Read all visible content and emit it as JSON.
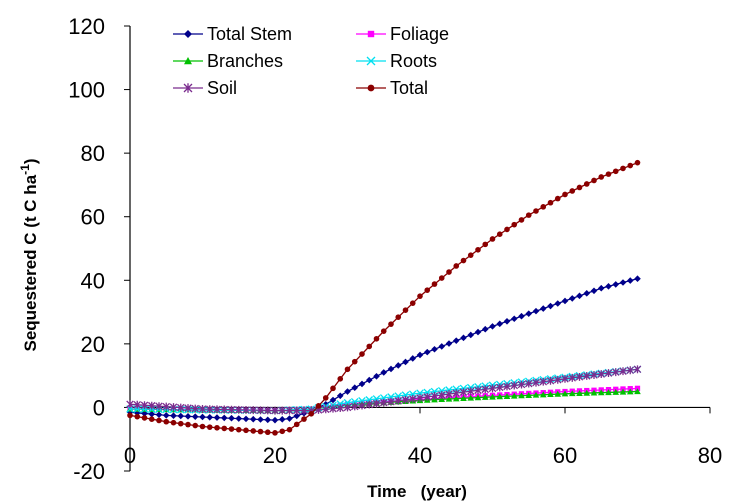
{
  "chart_data": {
    "type": "line",
    "xlabel": "Time   (year)",
    "ylabel_main": "Sequestered C (t C ha",
    "ylabel_sup": "-1",
    "ylabel_end": ")",
    "xlim": [
      0,
      80
    ],
    "ylim": [
      -20,
      120
    ],
    "x_ticks": [
      0,
      20,
      40,
      60,
      80
    ],
    "y_ticks": [
      -20,
      0,
      20,
      40,
      60,
      80,
      100,
      120
    ],
    "grid": false,
    "legend_position": "top-left",
    "series": [
      {
        "name": "Total Stem",
        "color": "#00008B",
        "marker": "diamond",
        "x": [
          0,
          5,
          10,
          15,
          20,
          22,
          25,
          27,
          30,
          35,
          40,
          45,
          50,
          55,
          60,
          65,
          70
        ],
        "y": [
          -1.5,
          -2.5,
          -3.0,
          -3.5,
          -4.0,
          -3.5,
          -1.0,
          1.0,
          5.0,
          11.0,
          16.5,
          21.0,
          25.5,
          29.5,
          33.5,
          37.5,
          40.5
        ]
      },
      {
        "name": "Foliage",
        "color": "#FF00FF",
        "marker": "square",
        "x": [
          0,
          10,
          20,
          25,
          30,
          40,
          50,
          60,
          70
        ],
        "y": [
          -0.5,
          -0.8,
          -1.0,
          -0.5,
          1.0,
          2.5,
          3.8,
          5.0,
          6.0
        ]
      },
      {
        "name": "Branches",
        "color": "#00C000",
        "marker": "triangle",
        "x": [
          0,
          10,
          20,
          25,
          30,
          40,
          50,
          60,
          70
        ],
        "y": [
          -0.5,
          -0.8,
          -1.0,
          -0.5,
          0.8,
          2.2,
          3.3,
          4.3,
          5.0
        ]
      },
      {
        "name": "Roots",
        "color": "#00E0F0",
        "marker": "x",
        "x": [
          0,
          10,
          20,
          25,
          30,
          40,
          50,
          60,
          70
        ],
        "y": [
          -0.5,
          -0.8,
          -1.0,
          -0.5,
          1.5,
          4.5,
          7.0,
          9.5,
          12.0
        ]
      },
      {
        "name": "Soil",
        "color": "#7B2C8E",
        "marker": "star",
        "x": [
          0,
          10,
          20,
          25,
          30,
          40,
          50,
          60,
          70
        ],
        "y": [
          1.0,
          -0.5,
          -1.0,
          -1.0,
          0.0,
          3.0,
          6.0,
          9.0,
          12.0
        ]
      },
      {
        "name": "Total",
        "color": "#8B0000",
        "marker": "circle",
        "x": [
          0,
          5,
          10,
          15,
          20,
          22,
          25,
          27,
          30,
          35,
          40,
          45,
          50,
          55,
          60,
          65,
          70
        ],
        "y": [
          -2.5,
          -4.5,
          -6.0,
          -7.0,
          -8.0,
          -7.0,
          -2.0,
          3.0,
          12.0,
          24.0,
          35.0,
          44.5,
          53.0,
          60.5,
          67.0,
          72.5,
          77.0
        ]
      }
    ]
  }
}
